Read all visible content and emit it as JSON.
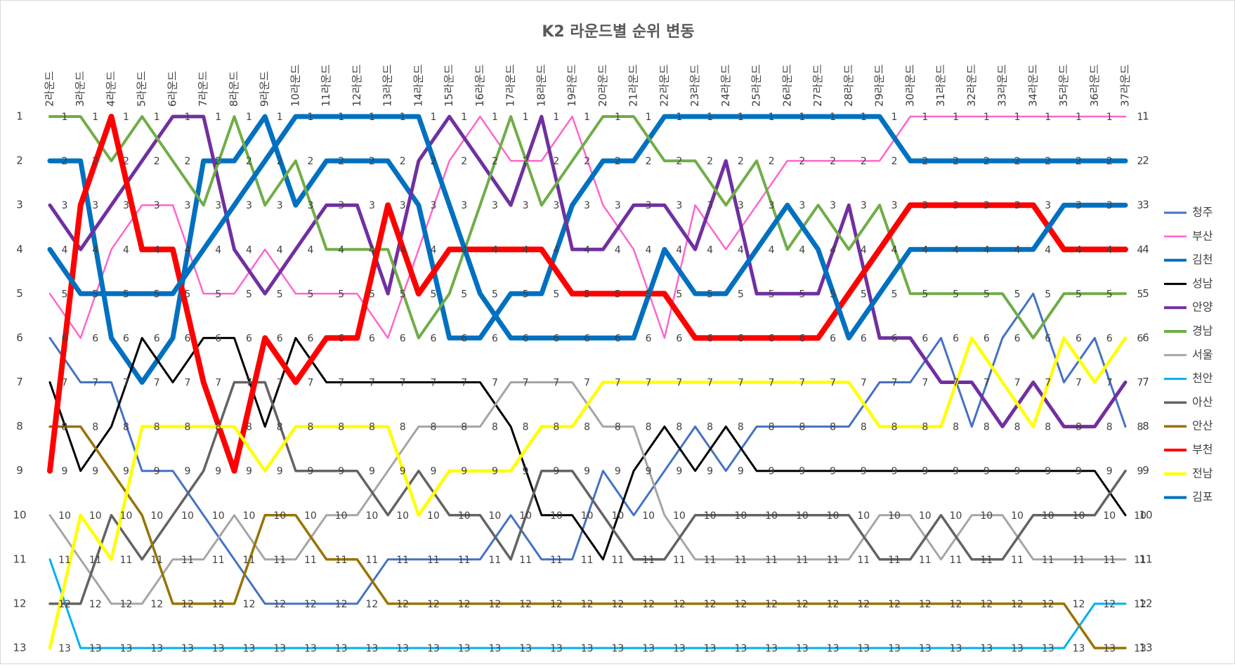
{
  "chart_data": {
    "type": "line",
    "title": "K2 라운드별 순위 변동",
    "categories": [
      "2라운드",
      "3라운드",
      "4라운드",
      "5라운드",
      "6라운드",
      "7라운드",
      "8라운드",
      "9라운드",
      "10라운드",
      "11라운드",
      "12라운드",
      "13라운드",
      "14라운드",
      "15라운드",
      "16라운드",
      "17라운드",
      "18라운드",
      "19라운드",
      "20라운드",
      "21라운드",
      "22라운드",
      "23라운드",
      "24라운드",
      "25라운드",
      "26라운드",
      "27라운드",
      "28라운드",
      "29라운드",
      "30라운드",
      "31라운드",
      "32라운드",
      "33라운드",
      "34라운드",
      "35라운드",
      "36라운드",
      "37라운드"
    ],
    "ylim": [
      1,
      13
    ],
    "yticks": [
      1,
      2,
      3,
      4,
      5,
      6,
      7,
      8,
      9,
      10,
      11,
      12,
      13
    ],
    "y_reversed": true,
    "grid": false,
    "legend": "right",
    "data_labels": true,
    "series": [
      {
        "name": "청주",
        "color": "#4472c4",
        "line_width": 3,
        "values": [
          6,
          7,
          7,
          9,
          9,
          10,
          11,
          12,
          12,
          12,
          12,
          11,
          11,
          11,
          11,
          10,
          11,
          11,
          9,
          10,
          9,
          8,
          9,
          8,
          8,
          8,
          8,
          7,
          7,
          6,
          8,
          6,
          5,
          7,
          6,
          8
        ]
      },
      {
        "name": "부산",
        "color": "#ff66cc",
        "line_width": 2.5,
        "values": [
          5,
          6,
          4,
          3,
          3,
          5,
          5,
          4,
          5,
          5,
          5,
          6,
          4,
          2,
          1,
          2,
          2,
          1,
          3,
          4,
          6,
          3,
          4,
          3,
          2,
          2,
          2,
          2,
          1,
          1,
          1,
          1,
          1,
          1,
          1,
          1
        ]
      },
      {
        "name": "김천",
        "color": "#0070c0",
        "line_width": 7,
        "values": [
          2,
          2,
          6,
          7,
          6,
          2,
          2,
          1,
          3,
          2,
          2,
          2,
          3,
          6,
          6,
          5,
          5,
          3,
          2,
          2,
          1,
          1,
          1,
          1,
          1,
          1,
          1,
          1,
          2,
          2,
          2,
          2,
          2,
          2,
          2,
          2
        ]
      },
      {
        "name": "성남",
        "color": "#000000",
        "line_width": 3,
        "values": [
          7,
          9,
          8,
          6,
          7,
          6,
          6,
          8,
          6,
          7,
          7,
          7,
          7,
          7,
          7,
          8,
          10,
          10,
          11,
          9,
          8,
          9,
          8,
          9,
          9,
          9,
          9,
          9,
          9,
          9,
          9,
          9,
          9,
          9,
          9,
          10
        ]
      },
      {
        "name": "안양",
        "color": "#7030a0",
        "line_width": 5,
        "values": [
          3,
          4,
          3,
          2,
          1,
          1,
          4,
          5,
          4,
          3,
          3,
          5,
          2,
          1,
          2,
          3,
          1,
          4,
          4,
          3,
          3,
          4,
          2,
          5,
          5,
          5,
          3,
          6,
          6,
          7,
          7,
          8,
          7,
          8,
          8,
          7
        ]
      },
      {
        "name": "경남",
        "color": "#70ad47",
        "line_width": 4,
        "values": [
          1,
          1,
          2,
          1,
          2,
          3,
          1,
          3,
          2,
          4,
          4,
          4,
          6,
          5,
          3,
          1,
          3,
          2,
          1,
          1,
          2,
          2,
          3,
          2,
          4,
          3,
          4,
          3,
          5,
          5,
          5,
          5,
          6,
          5,
          5,
          5
        ]
      },
      {
        "name": "서울",
        "color": "#a5a5a5",
        "line_width": 3,
        "values": [
          10,
          11,
          12,
          12,
          11,
          11,
          10,
          11,
          11,
          10,
          10,
          9,
          8,
          8,
          8,
          7,
          7,
          7,
          8,
          8,
          10,
          11,
          11,
          11,
          11,
          11,
          11,
          10,
          10,
          11,
          10,
          10,
          11,
          11,
          11,
          11
        ]
      },
      {
        "name": "천안",
        "color": "#00b0f0",
        "line_width": 3,
        "values": [
          11,
          13,
          13,
          13,
          13,
          13,
          13,
          13,
          13,
          13,
          13,
          13,
          13,
          13,
          13,
          13,
          13,
          13,
          13,
          13,
          13,
          13,
          13,
          13,
          13,
          13,
          13,
          13,
          13,
          13,
          13,
          13,
          13,
          13,
          12,
          12
        ]
      },
      {
        "name": "아산",
        "color": "#636363",
        "line_width": 3.5,
        "values": [
          12,
          12,
          10,
          11,
          10,
          9,
          7,
          7,
          9,
          9,
          9,
          10,
          9,
          10,
          10,
          11,
          9,
          9,
          10,
          11,
          11,
          10,
          10,
          10,
          10,
          10,
          10,
          11,
          11,
          10,
          11,
          11,
          10,
          10,
          10,
          9
        ]
      },
      {
        "name": "안산",
        "color": "#997300",
        "line_width": 3.5,
        "values": [
          8,
          8,
          9,
          10,
          12,
          12,
          12,
          10,
          10,
          11,
          11,
          12,
          12,
          12,
          12,
          12,
          12,
          12,
          12,
          12,
          12,
          12,
          12,
          12,
          12,
          12,
          12,
          12,
          12,
          12,
          12,
          12,
          12,
          12,
          13,
          13
        ]
      },
      {
        "name": "부천",
        "color": "#ff0000",
        "line_width": 8,
        "values": [
          9,
          3,
          1,
          4,
          4,
          7,
          9,
          6,
          7,
          6,
          6,
          3,
          5,
          4,
          4,
          4,
          4,
          5,
          5,
          5,
          5,
          6,
          6,
          6,
          6,
          6,
          5,
          4,
          3,
          3,
          3,
          3,
          3,
          4,
          4,
          4
        ]
      },
      {
        "name": "전남",
        "color": "#ffff00",
        "line_width": 4.5,
        "values": [
          13,
          10,
          11,
          8,
          8,
          8,
          8,
          9,
          8,
          8,
          8,
          8,
          10,
          9,
          9,
          9,
          8,
          8,
          7,
          7,
          7,
          7,
          7,
          7,
          7,
          7,
          7,
          8,
          8,
          8,
          6,
          7,
          8,
          6,
          7,
          6
        ]
      },
      {
        "name": "김포",
        "color": "#0070c0",
        "line_width": 7,
        "values": [
          4,
          5,
          5,
          5,
          5,
          4,
          3,
          2,
          1,
          1,
          1,
          1,
          1,
          3,
          5,
          6,
          6,
          6,
          6,
          6,
          4,
          5,
          5,
          4,
          3,
          4,
          6,
          5,
          4,
          4,
          4,
          4,
          4,
          3,
          3,
          3
        ]
      }
    ]
  }
}
